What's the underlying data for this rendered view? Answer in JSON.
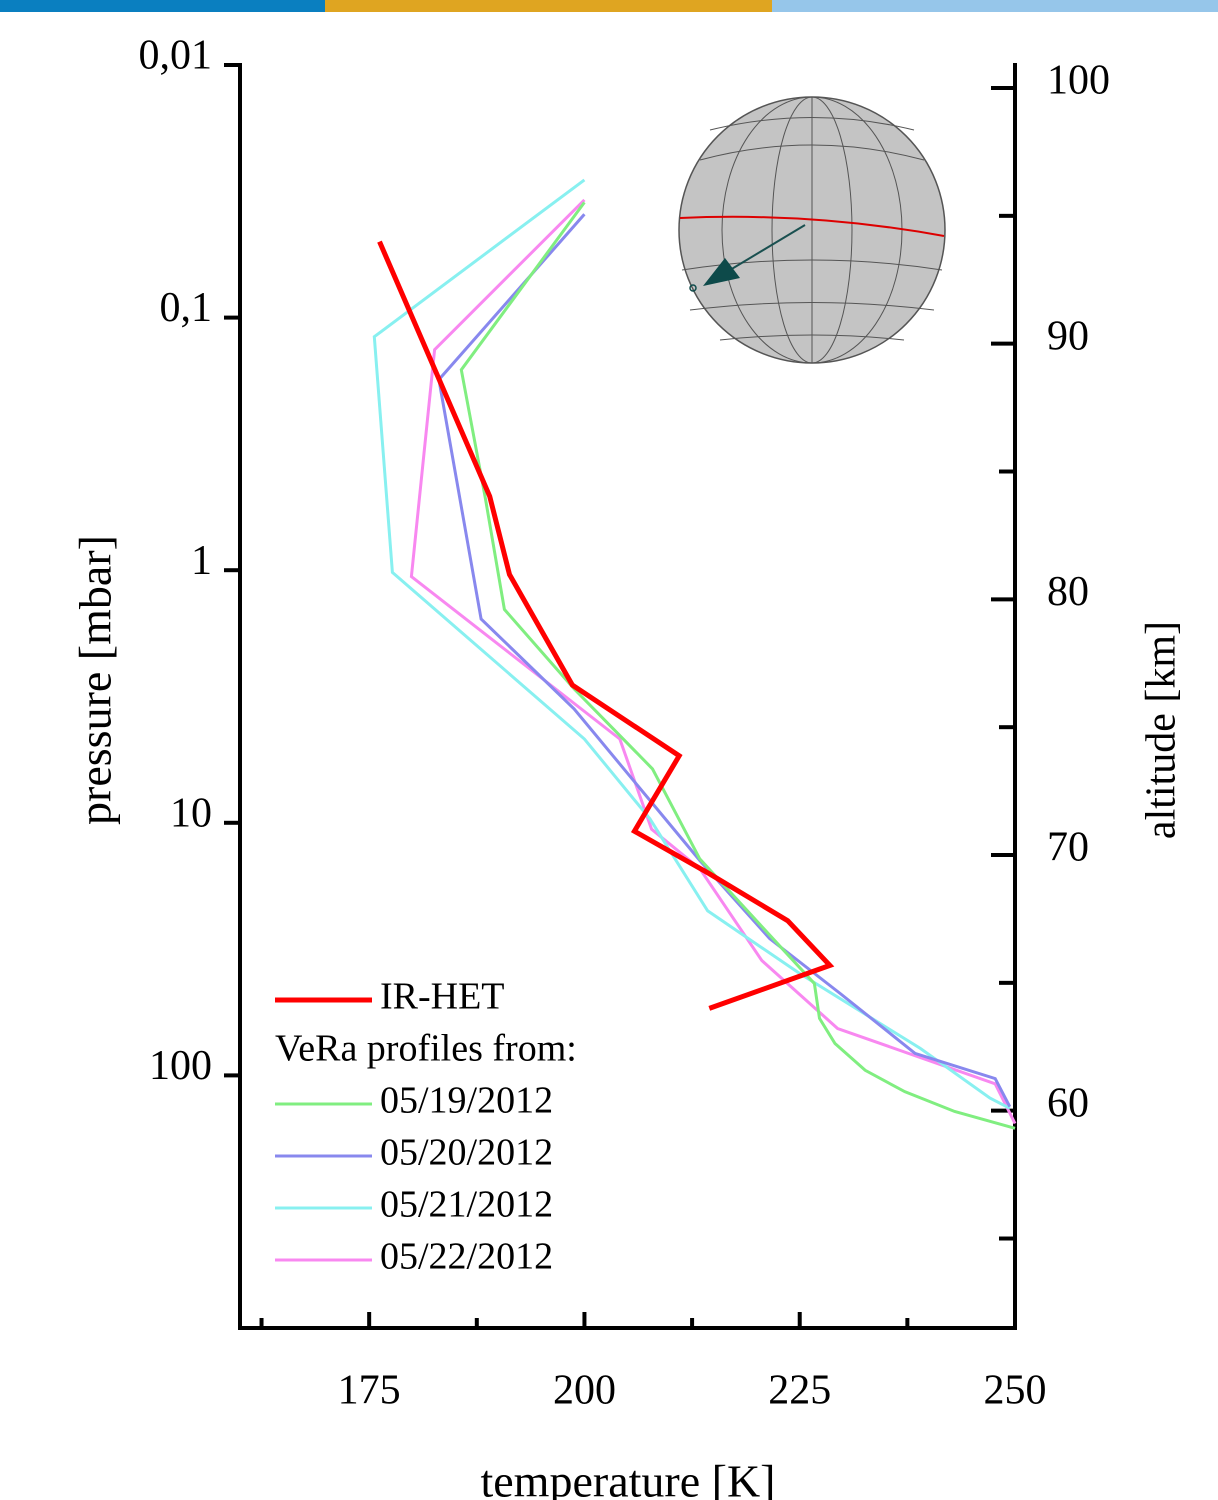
{
  "chart_data": {
    "type": "line",
    "xlabel": "temperature [K]",
    "ylabel": "pressure [mbar]",
    "y2label": "altitude [km]",
    "xlim": [
      160,
      250
    ],
    "xticks": [
      175,
      200,
      225,
      250
    ],
    "xminorticks": [
      162.5,
      187.5,
      212.5,
      237.5
    ],
    "ylim": [
      0.01,
      1000
    ],
    "yscale": "log",
    "yreverse": true,
    "yticks": [
      {
        "value": 0.01,
        "label": "0,01"
      },
      {
        "value": 0.1,
        "label": "0,1"
      },
      1,
      10,
      100
    ],
    "y2lim": [
      51.5,
      100.9
    ],
    "y2ticks": [
      60,
      70,
      80,
      90,
      100
    ],
    "y2minorticks": [
      55,
      65,
      75,
      85,
      95
    ],
    "legend_position": "lower left",
    "legend_note": "VeRa profiles from:",
    "series": [
      {
        "name": "IR-HET",
        "color": "#ff0000",
        "width": 5,
        "x": [
          176.2,
          189.0,
          191.3,
          198.6,
          211.0,
          205.8,
          214.5,
          223.6,
          228.5,
          214.5
        ],
        "values": [
          0.05,
          0.51,
          1.04,
          2.85,
          5.43,
          10.8,
          15.9,
          24.4,
          36.7,
          54.3
        ]
      },
      {
        "name": "05/19/2012",
        "color": "#80ee80",
        "width": 3,
        "x": [
          200,
          185.7,
          188.5,
          190.7,
          198.8,
          207.9,
          213.4,
          220.3,
          226.7,
          227.3,
          229.1,
          232.6,
          237.2,
          243.0,
          250
        ],
        "values": [
          0.035,
          0.161,
          0.52,
          1.43,
          2.95,
          6.12,
          13.9,
          25.1,
          43.3,
          59.5,
          74.8,
          95.5,
          116,
          139,
          162
        ]
      },
      {
        "name": "05/20/2012",
        "color": "#8888ee",
        "width": 3,
        "x": [
          200,
          183.1,
          188.0,
          198.8,
          213.4,
          221.5,
          229.7,
          238.4,
          247.7,
          249.4
        ],
        "values": [
          0.039,
          0.176,
          1.56,
          3.54,
          14.1,
          28.7,
          47.4,
          81.8,
          103,
          133
        ]
      },
      {
        "name": "05/21/2012",
        "color": "#88f0f0",
        "width": 3,
        "x": [
          200,
          175.6,
          177.7,
          200,
          207.6,
          214.3,
          225.0,
          239.0,
          247.1,
          249.4
        ],
        "values": [
          0.0285,
          0.119,
          1.02,
          4.66,
          9.64,
          22.3,
          39.5,
          78.2,
          123,
          135
        ]
      },
      {
        "name": "05/22/2012",
        "color": "#f888f0",
        "width": 3,
        "x": [
          200,
          182.6,
          179.9,
          204.1,
          207.8,
          213.4,
          220.6,
          229.4,
          247.7,
          250
        ],
        "values": [
          0.0342,
          0.134,
          1.06,
          4.66,
          10.6,
          15.2,
          35.1,
          65.2,
          108,
          155
        ]
      }
    ]
  }
}
